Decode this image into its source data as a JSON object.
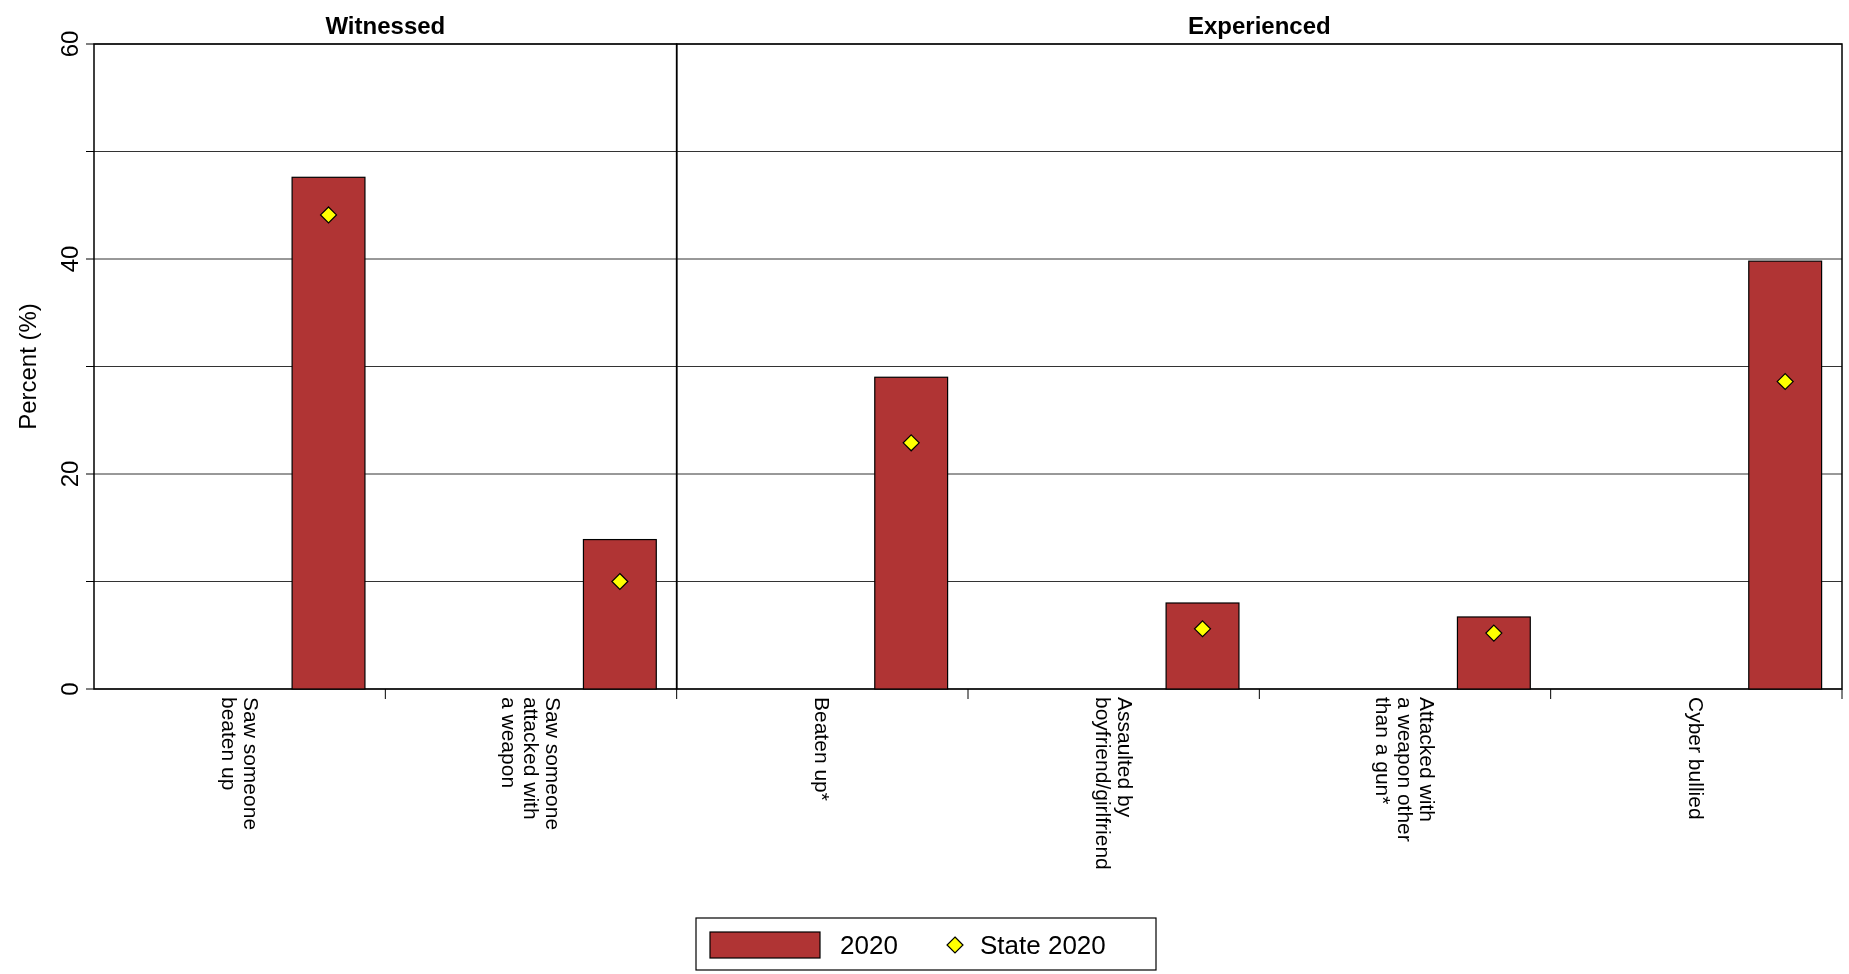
{
  "chart_data": [
    {
      "type": "bar",
      "title": "Witnessed",
      "ylabel": "Percent (%)",
      "categories": [
        "Saw someone beaten up",
        "Saw someone attacked with a weapon"
      ],
      "series": [
        {
          "name": "2020",
          "color": "#b03434",
          "values": [
            47.6,
            13.9
          ]
        },
        {
          "name": "State 2020",
          "type": "scatter",
          "color": "#ffff00",
          "values": [
            44.1,
            10.0
          ]
        }
      ],
      "ylim": [
        0,
        60
      ],
      "yticks": [
        0,
        {
          "value": 10,
          "label": null
        },
        20,
        {
          "value": 30,
          "label": null
        },
        40,
        {
          "value": 50,
          "label": null
        },
        60
      ],
      "grid": "y",
      "marker": "diamond",
      "legend": "bottom"
    },
    {
      "type": "bar",
      "title": "Experienced",
      "categories": [
        "Beaten up*",
        "Assaulted by boyfriend/girlfriend",
        "Attacked with a weapon other than a gun*",
        "Cyber bullied"
      ],
      "series": [
        {
          "name": "2020",
          "color": "#b03434",
          "values": [
            29.0,
            8.0,
            6.7,
            39.8
          ]
        },
        {
          "name": "State 2020",
          "type": "scatter",
          "color": "#ffff00",
          "values": [
            22.9,
            5.6,
            5.2,
            28.6
          ]
        }
      ],
      "ylim": [
        0,
        60
      ],
      "yticks": [
        0,
        {
          "value": 10,
          "label": null
        },
        20,
        {
          "value": 30,
          "label": null
        },
        40,
        {
          "value": 50,
          "label": null
        },
        60
      ],
      "grid": "y",
      "marker": "diamond",
      "legend": "bottom",
      "tick_labels": "x"
    }
  ]
}
